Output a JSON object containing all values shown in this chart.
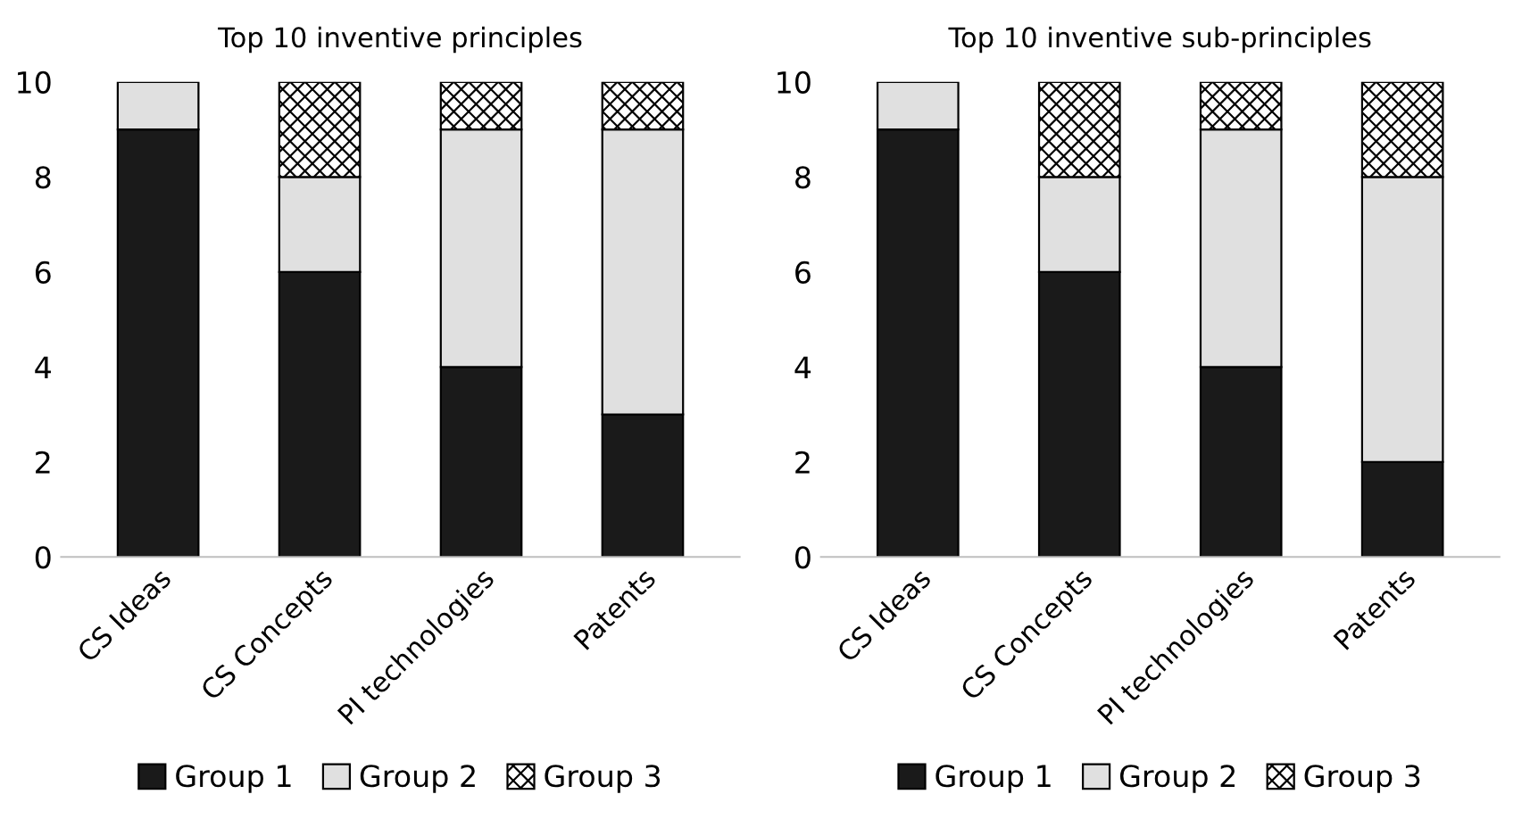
{
  "chart_data": [
    {
      "type": "bar",
      "stacked": true,
      "title": "Top 10 inventive principles",
      "categories": [
        "CS Ideas",
        "CS Concepts",
        "PI technologies",
        "Patents"
      ],
      "ylim": [
        0,
        10
      ],
      "yticks": [
        0,
        2,
        4,
        6,
        8,
        10
      ],
      "grid": false,
      "legend": "bottom",
      "series": [
        {
          "name": "Group 1",
          "color": "#1a1a1a",
          "values": [
            9,
            6,
            4,
            3
          ]
        },
        {
          "name": "Group 2",
          "color": "#e0e0e0",
          "values": [
            1,
            2,
            5,
            6
          ]
        },
        {
          "name": "Group 3",
          "color": "#000000",
          "values": [
            0,
            2,
            1,
            1
          ]
        }
      ]
    },
    {
      "type": "bar",
      "stacked": true,
      "title": "Top 10 inventive sub-principles",
      "categories": [
        "CS Ideas",
        "CS Concepts",
        "PI technologies",
        "Patents"
      ],
      "ylim": [
        0,
        10
      ],
      "yticks": [
        0,
        2,
        4,
        6,
        8,
        10
      ],
      "grid": false,
      "legend": "bottom",
      "series": [
        {
          "name": "Group 1",
          "color": "#1a1a1a",
          "values": [
            9,
            6,
            4,
            2
          ]
        },
        {
          "name": "Group 2",
          "color": "#e0e0e0",
          "values": [
            1,
            2,
            5,
            6
          ]
        },
        {
          "name": "Group 3",
          "color": "#000000",
          "values": [
            0,
            2,
            1,
            2
          ]
        }
      ]
    }
  ]
}
